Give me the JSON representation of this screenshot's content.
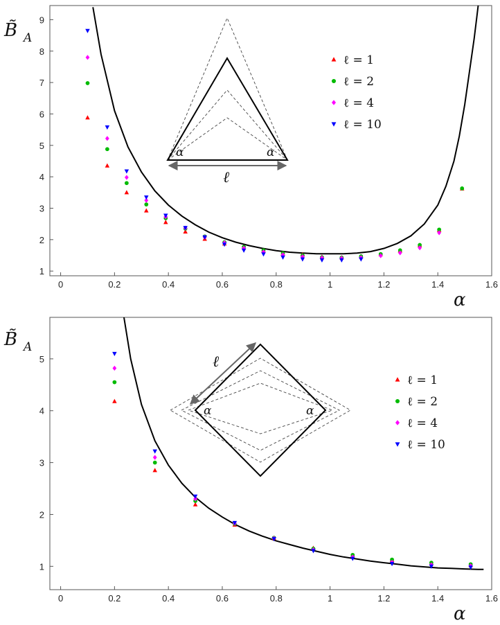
{
  "chart_data": [
    {
      "type": "scatter",
      "xlabel": "α",
      "ylabel": {
        "main": "B̃",
        "sub": "A"
      },
      "xlim": [
        -0.04,
        1.6
      ],
      "ylim": [
        0.85,
        9.45
      ],
      "xticks": [
        0,
        0.2,
        0.4,
        0.6,
        0.8,
        1,
        1.2,
        1.4,
        1.6
      ],
      "xtick_labels": [
        "0",
        "0.2",
        "0.4",
        "0.6",
        "0.8",
        "1",
        "1.2",
        "1.4",
        "1.6"
      ],
      "yticks": [
        1,
        2,
        3,
        4,
        5,
        6,
        7,
        8,
        9
      ],
      "ytick_labels": [
        "1",
        "2",
        "3",
        "4",
        "5",
        "6",
        "7",
        "8",
        "9"
      ],
      "legend_position": "right",
      "curve": {
        "x": [
          0.12,
          0.15,
          0.2,
          0.25,
          0.3,
          0.35,
          0.4,
          0.45,
          0.5,
          0.55,
          0.6,
          0.65,
          0.7,
          0.75,
          0.8,
          0.85,
          0.9,
          0.95,
          1.0,
          1.05,
          1.1,
          1.15,
          1.2,
          1.25,
          1.3,
          1.35,
          1.4,
          1.43,
          1.46,
          1.48,
          1.5,
          1.52,
          1.535,
          1.545,
          1.55
        ],
        "y": [
          9.4,
          7.9,
          6.1,
          4.95,
          4.15,
          3.55,
          3.1,
          2.75,
          2.47,
          2.24,
          2.06,
          1.92,
          1.81,
          1.72,
          1.65,
          1.6,
          1.57,
          1.55,
          1.55,
          1.55,
          1.57,
          1.62,
          1.72,
          1.88,
          2.12,
          2.5,
          3.1,
          3.7,
          4.5,
          5.3,
          6.3,
          7.5,
          8.4,
          9.1,
          9.45
        ]
      },
      "series": [
        {
          "name": "ℓ = 1",
          "color": "#ff0000",
          "marker": "triangle-up",
          "x": [
            0.1,
            0.173,
            0.245,
            0.318,
            0.39,
            0.463,
            0.535,
            0.608,
            0.68,
            0.753,
            0.825,
            0.898,
            0.97,
            1.043,
            1.115,
            1.188,
            1.26,
            1.333,
            1.405,
            1.49
          ],
          "y": [
            5.88,
            4.35,
            3.5,
            2.92,
            2.55,
            2.25,
            2.02,
            1.87,
            1.75,
            1.65,
            1.56,
            1.52,
            1.45,
            1.43,
            1.46,
            1.53,
            1.65,
            1.82,
            2.3,
            3.62
          ]
        },
        {
          "name": "ℓ = 2",
          "color": "#00bb00",
          "marker": "circle",
          "x": [
            0.1,
            0.173,
            0.245,
            0.318,
            0.39,
            0.463,
            0.535,
            0.608,
            0.68,
            0.753,
            0.825,
            0.898,
            0.97,
            1.043,
            1.115,
            1.188,
            1.26,
            1.333,
            1.405,
            1.49
          ],
          "y": [
            6.98,
            4.88,
            3.8,
            3.12,
            2.68,
            2.35,
            2.1,
            1.92,
            1.77,
            1.66,
            1.57,
            1.5,
            1.44,
            1.43,
            1.47,
            1.54,
            1.66,
            1.83,
            2.32,
            3.63
          ]
        },
        {
          "name": "ℓ = 4",
          "color": "#ff00ff",
          "marker": "diamond",
          "x": [
            0.1,
            0.173,
            0.245,
            0.318,
            0.39,
            0.463,
            0.535,
            0.608,
            0.68,
            0.753,
            0.825,
            0.898,
            0.97,
            1.043,
            1.115,
            1.188,
            1.26,
            1.333,
            1.405
          ],
          "y": [
            7.8,
            5.22,
            3.98,
            3.25,
            2.73,
            2.37,
            2.08,
            1.9,
            1.73,
            1.61,
            1.52,
            1.46,
            1.42,
            1.41,
            1.43,
            1.49,
            1.58,
            1.74,
            2.22
          ]
        },
        {
          "name": "ℓ = 10",
          "color": "#0000ff",
          "marker": "triangle-down",
          "x": [
            0.1,
            0.173,
            0.245,
            0.318,
            0.39,
            0.463,
            0.535,
            0.608,
            0.68,
            0.753,
            0.825,
            0.898,
            0.97,
            1.043,
            1.115
          ],
          "y": [
            8.65,
            5.58,
            4.18,
            3.35,
            2.77,
            2.38,
            2.08,
            1.85,
            1.66,
            1.54,
            1.44,
            1.38,
            1.35,
            1.35,
            1.38
          ]
        }
      ],
      "inset": {
        "shape": "triangle",
        "angle_label": "α",
        "length_label": "ℓ"
      }
    },
    {
      "type": "scatter",
      "xlabel": "α",
      "ylabel": {
        "main": "B̃",
        "sub": "A"
      },
      "xlim": [
        -0.04,
        1.6
      ],
      "ylim": [
        0.55,
        5.8
      ],
      "xticks": [
        0,
        0.2,
        0.4,
        0.6,
        0.8,
        1,
        1.2,
        1.4,
        1.6
      ],
      "xtick_labels": [
        "0",
        "0.2",
        "0.4",
        "0.6",
        "0.8",
        "1",
        "1.2",
        "1.4",
        "1.6"
      ],
      "yticks": [
        1,
        2,
        3,
        4,
        5
      ],
      "ytick_labels": [
        "1",
        "2",
        "3",
        "4",
        "5"
      ],
      "legend_position": "right",
      "curve": {
        "x": [
          0.235,
          0.26,
          0.3,
          0.35,
          0.4,
          0.45,
          0.5,
          0.55,
          0.6,
          0.65,
          0.7,
          0.75,
          0.8,
          0.85,
          0.9,
          0.95,
          1.0,
          1.05,
          1.1,
          1.15,
          1.2,
          1.25,
          1.3,
          1.35,
          1.4,
          1.45,
          1.5,
          1.55,
          1.57
        ],
        "y": [
          5.8,
          5.0,
          4.12,
          3.42,
          2.95,
          2.6,
          2.33,
          2.12,
          1.95,
          1.8,
          1.68,
          1.58,
          1.49,
          1.42,
          1.35,
          1.29,
          1.23,
          1.18,
          1.14,
          1.1,
          1.07,
          1.04,
          1.01,
          0.99,
          0.97,
          0.96,
          0.95,
          0.94,
          0.94
        ]
      },
      "series": [
        {
          "name": "ℓ = 1",
          "color": "#ff0000",
          "marker": "triangle-up",
          "x": [
            0.2,
            0.35,
            0.5,
            0.646,
            0.792,
            0.938,
            1.084,
            1.23,
            1.376,
            1.522
          ],
          "y": [
            4.18,
            2.85,
            2.19,
            1.8,
            1.54,
            1.35,
            1.21,
            1.12,
            1.06,
            1.02
          ]
        },
        {
          "name": "ℓ = 2",
          "color": "#00bb00",
          "marker": "circle",
          "x": [
            0.2,
            0.35,
            0.5,
            0.646,
            0.792,
            0.938,
            1.084,
            1.23,
            1.376,
            1.522
          ],
          "y": [
            4.55,
            3.0,
            2.26,
            1.82,
            1.55,
            1.34,
            1.22,
            1.13,
            1.07,
            1.04
          ]
        },
        {
          "name": "ℓ = 4",
          "color": "#ff00ff",
          "marker": "diamond",
          "x": [
            0.2,
            0.35,
            0.5,
            0.646,
            0.792,
            0.938,
            1.084,
            1.23,
            1.376,
            1.522
          ],
          "y": [
            4.82,
            3.1,
            2.3,
            1.83,
            1.54,
            1.32,
            1.18,
            1.08,
            1.03,
            1.01
          ]
        },
        {
          "name": "ℓ = 10",
          "color": "#0000ff",
          "marker": "triangle-down",
          "x": [
            0.2,
            0.35,
            0.5,
            0.646,
            0.792,
            0.938,
            1.084,
            1.23,
            1.376,
            1.522
          ],
          "y": [
            5.1,
            3.22,
            2.35,
            1.84,
            1.53,
            1.3,
            1.15,
            1.05,
            1.0,
            0.98
          ]
        }
      ],
      "inset": {
        "shape": "rhombus",
        "angle_label": "α",
        "length_label": "ℓ"
      }
    }
  ]
}
